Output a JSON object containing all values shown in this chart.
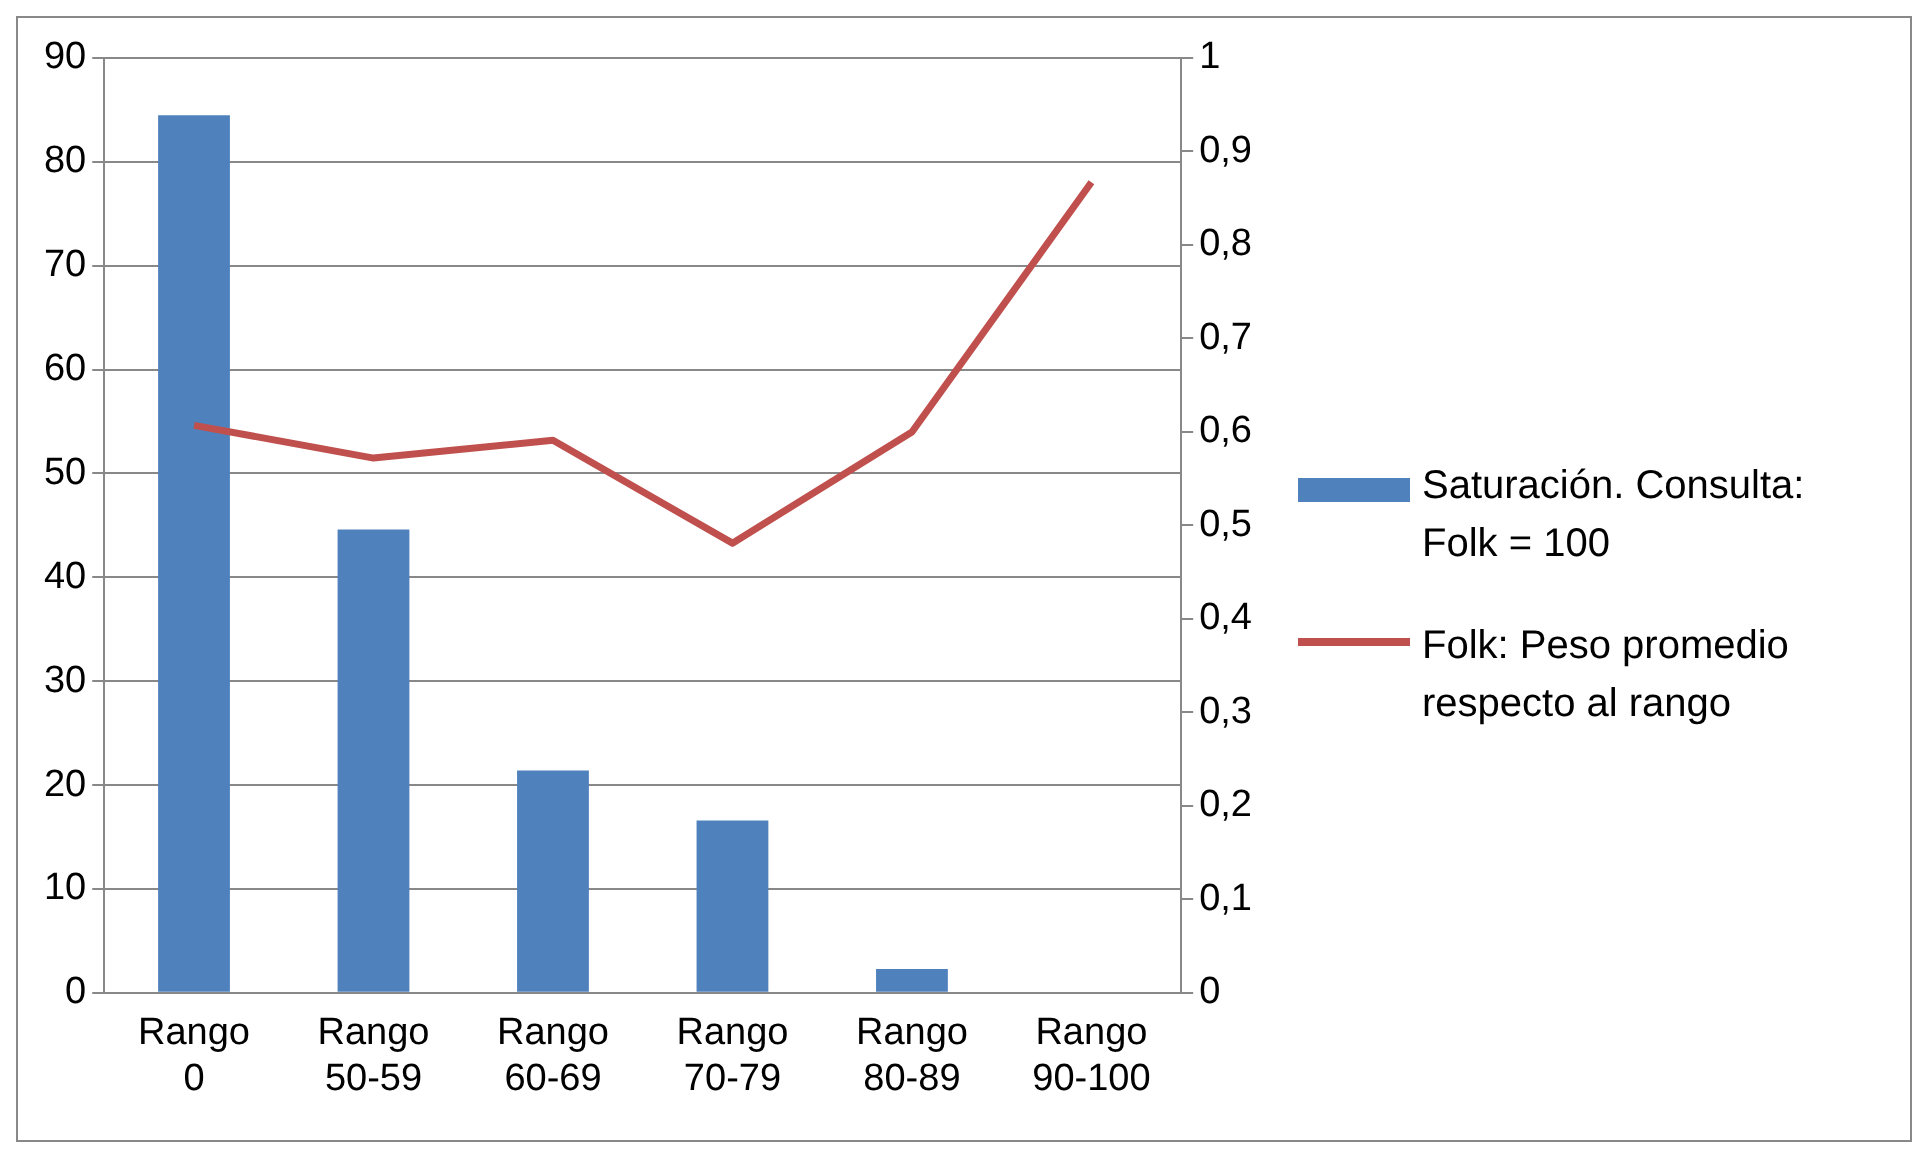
{
  "chart_data": {
    "type": "bar",
    "categories": [
      "Rango 0",
      "Rango 50-59",
      "Rango 60-69",
      "Rango 70-79",
      "Rango 80-89",
      "Rango 90-100"
    ],
    "series": [
      {
        "name": "Saturación. Consulta: Folk = 100",
        "color": "#4f81bd",
        "values": [
          84.5,
          44.6,
          21.4,
          16.6,
          2.3,
          0
        ]
      },
      {
        "name": "Folk: Peso promedio respecto al rango",
        "type": "line",
        "axis": "y2",
        "color": "#c0504d",
        "values": [
          0.607,
          0.572,
          0.591,
          0.481,
          0.6,
          0.867
        ]
      }
    ],
    "ylim": [
      0,
      90
    ],
    "yticks": [
      0,
      10,
      20,
      30,
      40,
      50,
      60,
      70,
      80,
      90
    ],
    "y2lim": [
      0,
      1
    ],
    "y2ticks": [
      0,
      {
        "value": 0.1,
        "label": "0,1"
      },
      {
        "value": 0.2,
        "label": "0,2"
      },
      {
        "value": 0.3,
        "label": "0,3"
      },
      {
        "value": 0.4,
        "label": "0,4"
      },
      {
        "value": 0.5,
        "label": "0,5"
      },
      {
        "value": 0.6,
        "label": "0,6"
      },
      {
        "value": 0.7,
        "label": "0,7"
      },
      {
        "value": 0.8,
        "label": "0,8"
      },
      {
        "value": 0.9,
        "label": "0,9"
      },
      1
    ],
    "grid": "y",
    "legend": "right",
    "marker": "none"
  }
}
